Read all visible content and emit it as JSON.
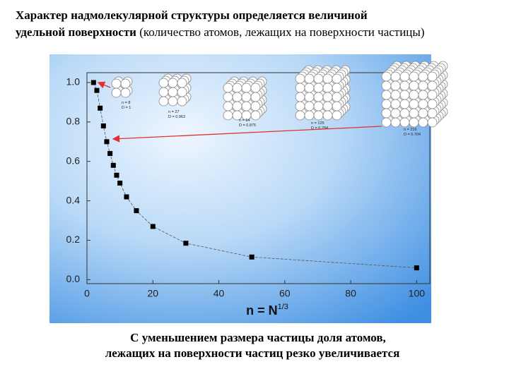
{
  "header": {
    "line1": "Характер надмолекулярной структуры определяется величиной",
    "line2_bold": "удельной поверхности",
    "line2_rest": "(количество атомов, лежащих на поверхности частицы)"
  },
  "caption": [
    "С уменьшением размера частицы доля атомов,",
    "лежащих на поверхности частиц резко увеличивается"
  ],
  "chart_data": {
    "type": "scatter",
    "xlabel": "n = N",
    "xlabel_sup": "1/3",
    "x": [
      2,
      3,
      4,
      5,
      6,
      7,
      8,
      9,
      10,
      12,
      15,
      20,
      30,
      50,
      100
    ],
    "series": [
      {
        "color": "#000000",
        "values": [
          1.0,
          0.96,
          0.87,
          0.78,
          0.7,
          0.64,
          0.58,
          0.53,
          0.49,
          0.42,
          0.35,
          0.27,
          0.185,
          0.115,
          0.06
        ]
      }
    ],
    "xlim": [
      0,
      104
    ],
    "ylim": [
      -0.02,
      1.05
    ],
    "xticks": [
      0,
      20,
      40,
      60,
      80,
      100
    ],
    "yticks": [
      {
        "value": 0,
        "label": "0.0"
      },
      {
        "value": 0.2,
        "label": "0.2"
      },
      {
        "value": 0.4,
        "label": "0.4"
      },
      {
        "value": 0.6,
        "label": "0.6"
      },
      {
        "value": 0.8,
        "label": "0.8"
      },
      {
        "value": 1.0,
        "label": "1.0"
      }
    ],
    "insets": [
      {
        "n": "n = 8",
        "D": "D = 1"
      },
      {
        "n": "n = 27",
        "D": "D = 0.963"
      },
      {
        "n": "n = 64",
        "D": "D = 0.875"
      },
      {
        "n": "n = 125",
        "D": "D = 0.784"
      },
      {
        "n": "n = 216",
        "D": "D = 0.704"
      }
    ]
  }
}
